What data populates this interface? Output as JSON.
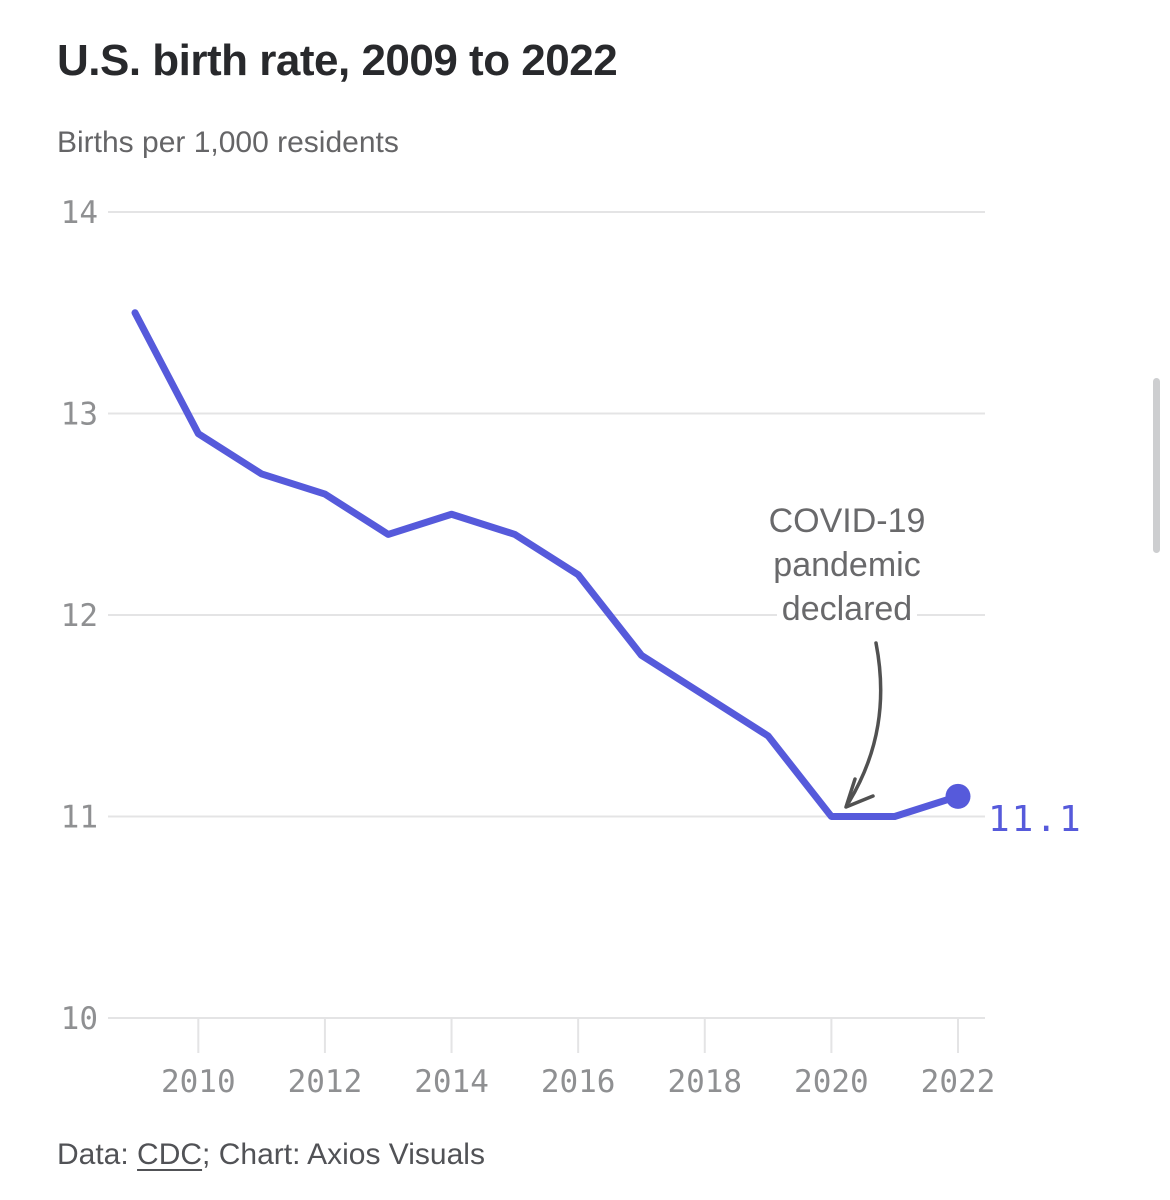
{
  "header": {
    "title": "U.S. birth rate, 2009 to 2022",
    "subtitle": "Births per 1,000 residents"
  },
  "chart_data": {
    "type": "line",
    "title": "U.S. birth rate, 2009 to 2022",
    "ylabel": "Births per 1,000 residents",
    "x": [
      2009,
      2010,
      2011,
      2012,
      2013,
      2014,
      2015,
      2016,
      2017,
      2018,
      2019,
      2020,
      2021,
      2022
    ],
    "series": [
      {
        "name": "U.S. birth rate",
        "values": [
          13.5,
          12.9,
          12.7,
          12.6,
          12.4,
          12.5,
          12.4,
          12.2,
          11.8,
          11.6,
          11.4,
          11.0,
          11.0,
          11.1
        ]
      }
    ],
    "ylim": [
      10,
      14
    ],
    "y_ticks": [
      14,
      13,
      12,
      11,
      10
    ],
    "x_ticks": [
      2010,
      2012,
      2014,
      2016,
      2018,
      2020,
      2022
    ],
    "grid": "horizontal",
    "legend": "none",
    "line_color": "#565adb",
    "gridline_color": "#e4e4e5",
    "axis_label_color": "#8f9092",
    "end_label": "11.1",
    "end_point": {
      "x": 2022,
      "y": 11.1
    }
  },
  "annotation": {
    "lines": [
      "COVID-19",
      "pandemic",
      "declared"
    ],
    "target_year": 2020,
    "color": "#69696b",
    "arrow_color": "#515151"
  },
  "footer": {
    "prefix": "Data: ",
    "source_link": "CDC",
    "suffix": "; Chart: Axios Visuals"
  }
}
